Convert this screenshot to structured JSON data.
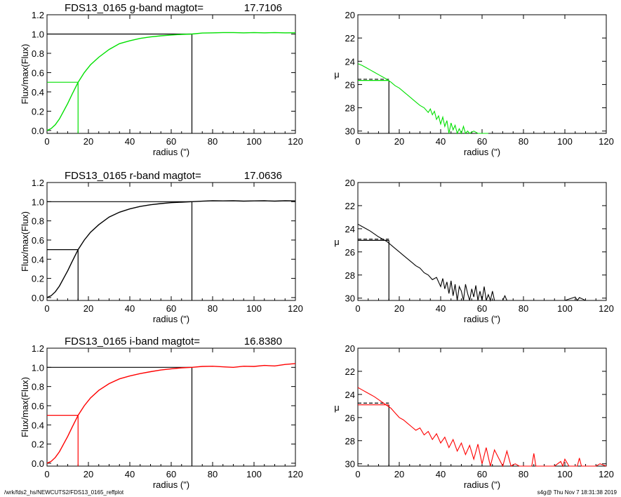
{
  "footer": {
    "left": "/wrk/fds2_hs/NEWCUTS2/FDS13_0165_reffplot",
    "right": "s4g@  Thu Nov  7 18:31:38 2019"
  },
  "chart_data": [
    {
      "type": "line",
      "panel": "growth",
      "band": "g",
      "title": "FDS13_0165 g-band  magtot=",
      "title_value": "17.7106",
      "color": "#00e000",
      "xlabel": "radius (\")",
      "ylabel": "Flux/max(Flux)",
      "xlim": [
        0,
        120
      ],
      "ylim": [
        -0.03,
        1.2
      ],
      "xticks": [
        0,
        20,
        40,
        60,
        80,
        100,
        120
      ],
      "yticks": [
        0.0,
        0.2,
        0.4,
        0.6,
        0.8,
        1.0,
        1.2
      ],
      "series": [
        {
          "x": [
            0,
            2,
            4,
            6,
            8,
            10,
            12,
            15,
            18,
            21,
            25,
            30,
            35,
            40,
            45,
            50,
            55,
            60,
            65,
            70,
            75,
            80,
            85,
            90,
            95,
            100,
            105,
            110,
            115,
            120
          ],
          "y": [
            0.0,
            0.02,
            0.06,
            0.12,
            0.2,
            0.28,
            0.37,
            0.5,
            0.6,
            0.68,
            0.76,
            0.84,
            0.9,
            0.93,
            0.955,
            0.97,
            0.982,
            0.99,
            0.996,
            1.0,
            1.01,
            1.012,
            1.015,
            1.015,
            1.012,
            1.015,
            1.012,
            1.015,
            1.012,
            1.013
          ]
        }
      ],
      "half_radius": 15,
      "total_radius": 70
    },
    {
      "type": "line",
      "panel": "profile",
      "band": "g",
      "color": "#00e000",
      "xlabel": "radius (\")",
      "ylabel": "μ",
      "xlim": [
        0,
        120
      ],
      "ylim": [
        30.2,
        20
      ],
      "inverted_y": true,
      "xticks": [
        0,
        20,
        40,
        60,
        80,
        100,
        120
      ],
      "yticks": [
        20,
        22,
        24,
        26,
        28,
        30
      ],
      "series": [
        {
          "x": [
            0,
            2,
            4,
            6,
            8,
            10,
            12,
            14,
            16,
            18,
            20,
            22,
            24,
            26,
            28,
            30,
            32,
            34,
            35,
            36,
            37,
            38,
            39,
            40,
            41,
            42,
            43,
            44,
            45,
            46,
            47,
            48,
            49,
            50,
            51,
            52,
            53,
            54,
            56,
            58,
            60,
            63
          ],
          "y": [
            24.2,
            24.35,
            24.55,
            24.75,
            24.95,
            25.15,
            25.35,
            25.55,
            25.8,
            26.1,
            26.3,
            26.6,
            26.9,
            27.2,
            27.5,
            27.8,
            28.0,
            28.4,
            28.1,
            28.6,
            28.3,
            29.0,
            28.7,
            29.4,
            28.8,
            29.6,
            29.1,
            30.2,
            29.3,
            29.9,
            29.5,
            30.2,
            29.8,
            30.2,
            29.6,
            30.2,
            30.0,
            30.2,
            30.0,
            30.2,
            30.2,
            30.2
          ]
        }
      ],
      "half_radius": 15,
      "half_mu": 25.65,
      "isophote_mu": 25.55
    },
    {
      "type": "line",
      "panel": "growth",
      "band": "r",
      "title": "FDS13_0165 r-band  magtot=",
      "title_value": "17.0636",
      "color": "#000000",
      "xlabel": "radius (\")",
      "ylabel": "Flux/max(Flux)",
      "xlim": [
        0,
        120
      ],
      "ylim": [
        -0.03,
        1.2
      ],
      "xticks": [
        0,
        20,
        40,
        60,
        80,
        100,
        120
      ],
      "yticks": [
        0.0,
        0.2,
        0.4,
        0.6,
        0.8,
        1.0,
        1.2
      ],
      "series": [
        {
          "x": [
            0,
            2,
            4,
            6,
            8,
            10,
            12,
            15,
            18,
            21,
            25,
            30,
            35,
            40,
            45,
            50,
            55,
            60,
            65,
            70,
            75,
            80,
            85,
            90,
            95,
            100,
            105,
            110,
            115,
            120
          ],
          "y": [
            0.0,
            0.02,
            0.06,
            0.12,
            0.2,
            0.28,
            0.37,
            0.5,
            0.6,
            0.68,
            0.76,
            0.84,
            0.89,
            0.925,
            0.95,
            0.968,
            0.98,
            0.99,
            0.995,
            1.0,
            1.005,
            1.01,
            1.008,
            1.01,
            1.006,
            1.008,
            1.01,
            1.006,
            1.01,
            1.008
          ]
        }
      ],
      "half_radius": 15,
      "total_radius": 70
    },
    {
      "type": "line",
      "panel": "profile",
      "band": "r",
      "color": "#000000",
      "xlabel": "radius (\")",
      "ylabel": "μ",
      "xlim": [
        0,
        120
      ],
      "ylim": [
        30.2,
        20
      ],
      "inverted_y": true,
      "xticks": [
        0,
        20,
        40,
        60,
        80,
        100,
        120
      ],
      "yticks": [
        20,
        22,
        24,
        26,
        28,
        30
      ],
      "series": [
        {
          "x": [
            0,
            2,
            4,
            6,
            8,
            10,
            12,
            14,
            16,
            18,
            20,
            22,
            24,
            26,
            28,
            30,
            32,
            34,
            36,
            38,
            40,
            41,
            42,
            43,
            44,
            45,
            46,
            47,
            48,
            49,
            50,
            51,
            52,
            53,
            54,
            55,
            56,
            57,
            58,
            59,
            60,
            61,
            62,
            63,
            64,
            65,
            66,
            68,
            70,
            71,
            72,
            80,
            90,
            100,
            105,
            106,
            107,
            110,
            120
          ],
          "y": [
            23.6,
            23.8,
            24.0,
            24.2,
            24.45,
            24.7,
            24.9,
            25.1,
            25.4,
            25.7,
            26.0,
            26.3,
            26.6,
            26.9,
            27.2,
            27.4,
            27.8,
            28.0,
            28.4,
            28.2,
            29.0,
            28.3,
            29.2,
            28.6,
            29.6,
            28.5,
            29.8,
            28.8,
            30.2,
            29.0,
            29.4,
            30.2,
            28.8,
            29.6,
            30.2,
            29.2,
            29.9,
            28.9,
            30.2,
            29.4,
            30.2,
            29.0,
            30.2,
            29.7,
            30.2,
            29.4,
            30.2,
            30.2,
            30.2,
            29.8,
            30.2,
            30.2,
            30.2,
            30.2,
            29.9,
            30.2,
            29.95,
            30.2,
            30.2
          ]
        }
      ],
      "half_radius": 15,
      "half_mu": 25.0,
      "isophote_mu": 24.9
    },
    {
      "type": "line",
      "panel": "growth",
      "band": "i",
      "title": "FDS13_0165 i-band  magtot=",
      "title_value": "16.8380",
      "color": "#ff0000",
      "xlabel": "radius (\")",
      "ylabel": "Flux/max(Flux)",
      "xlim": [
        0,
        120
      ],
      "ylim": [
        -0.03,
        1.2
      ],
      "xticks": [
        0,
        20,
        40,
        60,
        80,
        100,
        120
      ],
      "yticks": [
        0.0,
        0.2,
        0.4,
        0.6,
        0.8,
        1.0,
        1.2
      ],
      "series": [
        {
          "x": [
            0,
            2,
            4,
            6,
            8,
            10,
            12,
            15,
            18,
            21,
            25,
            30,
            35,
            40,
            45,
            50,
            55,
            60,
            65,
            70,
            75,
            80,
            85,
            90,
            95,
            100,
            105,
            110,
            115,
            120
          ],
          "y": [
            0.0,
            0.02,
            0.06,
            0.12,
            0.2,
            0.28,
            0.37,
            0.5,
            0.6,
            0.68,
            0.76,
            0.83,
            0.88,
            0.91,
            0.935,
            0.955,
            0.972,
            0.985,
            0.995,
            1.0,
            1.01,
            1.012,
            1.005,
            1.0,
            1.012,
            1.01,
            1.02,
            1.015,
            1.03,
            1.04
          ]
        }
      ],
      "half_radius": 15,
      "total_radius": 70
    },
    {
      "type": "line",
      "panel": "profile",
      "band": "i",
      "color": "#ff0000",
      "xlabel": "radius (\")",
      "ylabel": "μ",
      "xlim": [
        0,
        120
      ],
      "ylim": [
        30.2,
        20
      ],
      "inverted_y": true,
      "xticks": [
        0,
        20,
        40,
        60,
        80,
        100,
        120
      ],
      "yticks": [
        20,
        22,
        24,
        26,
        28,
        30
      ],
      "series": [
        {
          "x": [
            0,
            2,
            4,
            6,
            8,
            10,
            12,
            14,
            16,
            18,
            20,
            22,
            24,
            26,
            28,
            30,
            32,
            34,
            36,
            38,
            40,
            42,
            44,
            46,
            48,
            50,
            52,
            54,
            56,
            58,
            60,
            62,
            64,
            66,
            68,
            70,
            72,
            74,
            76,
            78,
            80,
            82,
            84,
            85,
            86,
            88,
            90,
            95,
            98,
            99,
            100,
            102,
            104,
            106,
            107,
            108,
            110,
            115,
            117,
            120
          ],
          "y": [
            23.4,
            23.6,
            23.8,
            24.0,
            24.2,
            24.45,
            24.7,
            24.95,
            25.2,
            25.6,
            26.0,
            26.2,
            26.5,
            26.8,
            27.1,
            26.9,
            27.5,
            27.2,
            27.9,
            27.4,
            28.2,
            27.7,
            28.6,
            27.9,
            28.9,
            28.2,
            29.2,
            28.4,
            29.6,
            28.3,
            30.0,
            28.6,
            30.2,
            28.8,
            29.5,
            30.2,
            28.9,
            30.2,
            30.0,
            30.2,
            30.2,
            30.2,
            30.2,
            29.1,
            30.2,
            30.2,
            30.2,
            30.2,
            29.8,
            30.2,
            29.6,
            30.2,
            30.2,
            30.2,
            29.5,
            30.2,
            30.2,
            30.2,
            30.0,
            30.2
          ]
        }
      ],
      "half_radius": 15,
      "half_mu": 24.9,
      "isophote_mu": 24.75
    }
  ]
}
